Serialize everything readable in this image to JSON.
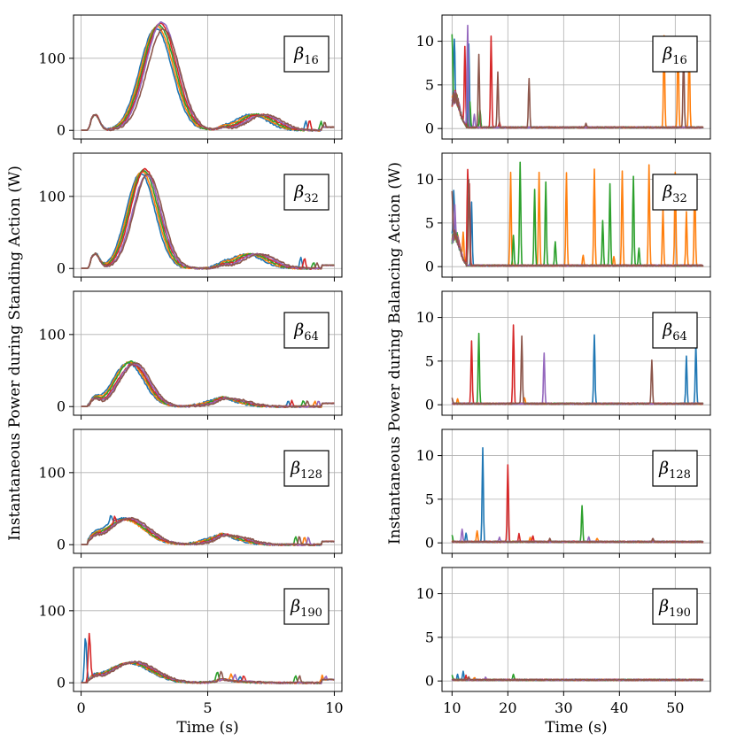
{
  "chart_data": {
    "type": "line",
    "colors": {
      "blue": "#1f77b4",
      "orange": "#ff7f0e",
      "green": "#2ca02c",
      "red": "#d62728",
      "purple": "#9467bd",
      "brown": "#8c564b"
    },
    "left": {
      "ylabel": "Instantaneous Power during Standing Action (W)",
      "xlabel": "Time (s)",
      "xlim": [
        -0.3,
        10.3
      ],
      "ylim": [
        -12,
        160
      ],
      "xticks": [
        0,
        5,
        10
      ],
      "xtick_labels": [
        "0",
        "5",
        "10"
      ],
      "yticks": [
        0,
        100
      ],
      "ytick_labels": [
        "0",
        "100"
      ]
    },
    "right": {
      "ylabel": "Instantaneous Power during Balancing Action (W)",
      "xlabel": "Time (s)",
      "xlim": [
        8.2,
        56.3
      ],
      "ylim": [
        -1.2,
        13.0
      ],
      "xticks": [
        10,
        20,
        30,
        40,
        50
      ],
      "xtick_labels": [
        "10",
        "20",
        "30",
        "40",
        "50"
      ],
      "yticks": [
        0,
        5,
        10
      ],
      "ytick_labels": [
        "0",
        "5",
        "10"
      ]
    },
    "panels": [
      {
        "label_main": "β",
        "label_sub": "16",
        "standing": {
          "peak_time": 3.1,
          "peak_width": 0.9,
          "peak_height": 145,
          "hump_time": 7.0,
          "hump_height": 22,
          "spikes": [
            [
              9.0,
              14
            ],
            [
              9.5,
              12
            ]
          ]
        },
        "balancing": [
          {
            "color": "blue",
            "spikes": [
              [
                10.4,
                6.5
              ],
              [
                13.0,
                9.5
              ]
            ]
          },
          {
            "color": "orange",
            "spikes": [
              [
                48.0,
                10.5
              ],
              [
                50.5,
                10.2
              ],
              [
                52.5,
                9.2
              ]
            ]
          },
          {
            "color": "green",
            "spikes": [
              [
                10.0,
                7.8
              ],
              [
                13.2,
                3.0
              ],
              [
                15.0,
                2.0
              ]
            ]
          },
          {
            "color": "red",
            "spikes": [
              [
                12.3,
                9.0
              ],
              [
                17.0,
                10.4
              ],
              [
                18.5,
                0.6
              ]
            ]
          },
          {
            "color": "purple",
            "spikes": [
              [
                12.8,
                11.7
              ],
              [
                14.0,
                1.5
              ]
            ]
          },
          {
            "color": "brown",
            "spikes": [
              [
                14.8,
                8.4
              ],
              [
                18.2,
                6.3
              ],
              [
                23.8,
                5.6
              ],
              [
                34.0,
                0.5
              ],
              [
                51.5,
                8.5
              ]
            ]
          }
        ]
      },
      {
        "label_main": "β",
        "label_sub": "32",
        "standing": {
          "peak_time": 2.5,
          "peak_width": 0.8,
          "peak_height": 133,
          "hump_time": 6.8,
          "hump_height": 20,
          "spikes": [
            [
              8.8,
              15
            ],
            [
              9.2,
              8
            ]
          ]
        },
        "balancing": [
          {
            "color": "blue",
            "spikes": [
              [
                10.3,
                5.0
              ],
              [
                13.5,
                7.2
              ]
            ]
          },
          {
            "color": "orange",
            "spikes": [
              [
                20.5,
                10.7
              ],
              [
                25.6,
                10.6
              ],
              [
                30.5,
                10.6
              ],
              [
                35.5,
                11.0
              ],
              [
                40.5,
                10.8
              ],
              [
                45.3,
                11.5
              ],
              [
                47.8,
                6.5
              ],
              [
                50.0,
                10.7
              ],
              [
                52.0,
                6.2
              ],
              [
                53.5,
                9.5
              ],
              [
                12.0,
                3.0
              ],
              [
                33.5,
                1.2
              ],
              [
                39.0,
                1.0
              ]
            ]
          },
          {
            "color": "green",
            "spikes": [
              [
                21.0,
                3.5
              ],
              [
                22.2,
                11.9
              ],
              [
                24.8,
                8.8
              ],
              [
                26.8,
                9.6
              ],
              [
                28.5,
                2.8
              ],
              [
                37.0,
                5.2
              ],
              [
                38.3,
                9.3
              ],
              [
                42.5,
                10.2
              ],
              [
                43.5,
                2.0
              ]
            ]
          },
          {
            "color": "red",
            "spikes": [
              [
                12.8,
                10.8
              ],
              [
                13.1,
                9.0
              ]
            ]
          },
          {
            "color": "purple",
            "spikes": [
              [
                10.5,
                3.0
              ]
            ]
          },
          {
            "color": "brown",
            "spikes": [
              [
                10.0,
                5.3
              ],
              [
                13.0,
                9.8
              ]
            ]
          }
        ]
      },
      {
        "label_main": "β",
        "label_sub": "64",
        "standing": {
          "peak_time": 2.0,
          "peak_width": 0.85,
          "peak_height": 60,
          "hump_time": 5.8,
          "hump_height": 10,
          "spikes": [
            [
              8.3,
              8
            ],
            [
              8.8,
              8
            ],
            [
              9.3,
              7
            ]
          ]
        },
        "balancing": [
          {
            "color": "blue",
            "spikes": [
              [
                35.5,
                7.8
              ],
              [
                52.0,
                5.5
              ],
              [
                53.7,
                6.8
              ]
            ]
          },
          {
            "color": "orange",
            "spikes": [
              [
                11.0,
                0.5
              ],
              [
                23.0,
                0.6
              ]
            ]
          },
          {
            "color": "green",
            "spikes": [
              [
                14.8,
                8.0
              ]
            ]
          },
          {
            "color": "red",
            "spikes": [
              [
                13.5,
                7.2
              ],
              [
                21.0,
                9.0
              ]
            ]
          },
          {
            "color": "purple",
            "spikes": [
              [
                26.5,
                5.8
              ]
            ]
          },
          {
            "color": "brown",
            "spikes": [
              [
                10.0,
                0.6
              ],
              [
                22.5,
                7.8
              ],
              [
                45.8,
                5.0
              ]
            ]
          }
        ]
      },
      {
        "label_main": "β",
        "label_sub": "128",
        "standing": {
          "peak_time": 1.8,
          "peak_width": 1.1,
          "peak_height": 36,
          "hump_time": 5.8,
          "hump_height": 12,
          "spikes": [
            [
              1.3,
              10
            ],
            [
              8.5,
              12
            ],
            [
              8.9,
              10
            ]
          ]
        },
        "balancing": [
          {
            "color": "blue",
            "spikes": [
              [
                15.5,
                10.7
              ],
              [
                12.5,
                1.0
              ]
            ]
          },
          {
            "color": "orange",
            "spikes": [
              [
                14.5,
                1.3
              ],
              [
                24.0,
                0.5
              ],
              [
                36.0,
                0.4
              ]
            ]
          },
          {
            "color": "green",
            "spikes": [
              [
                33.3,
                4.2
              ],
              [
                10.0,
                0.8
              ]
            ]
          },
          {
            "color": "red",
            "spikes": [
              [
                20.0,
                8.8
              ],
              [
                22.0,
                0.9
              ],
              [
                24.5,
                0.7
              ]
            ]
          },
          {
            "color": "purple",
            "spikes": [
              [
                11.8,
                1.5
              ],
              [
                18.5,
                0.5
              ],
              [
                34.5,
                0.5
              ]
            ]
          },
          {
            "color": "brown",
            "spikes": [
              [
                27.5,
                0.4
              ],
              [
                46.0,
                0.4
              ]
            ]
          }
        ]
      },
      {
        "label_main": "β",
        "label_sub": "190",
        "standing": {
          "peak_time": 2.0,
          "peak_width": 1.2,
          "peak_height": 28,
          "hump_time": 6.0,
          "hump_height": 2,
          "spikes": [
            [
              0.3,
              65
            ],
            [
              5.4,
              12
            ],
            [
              6.0,
              9
            ],
            [
              6.4,
              8
            ],
            [
              8.5,
              10
            ],
            [
              9.6,
              10
            ]
          ]
        },
        "balancing": [
          {
            "color": "blue",
            "spikes": [
              [
                12.0,
                1.0
              ],
              [
                11.0,
                0.6
              ]
            ]
          },
          {
            "color": "orange",
            "spikes": [
              [
                14.0,
                0.3
              ]
            ]
          },
          {
            "color": "green",
            "spikes": [
              [
                10.0,
                0.6
              ],
              [
                21.0,
                0.6
              ]
            ]
          },
          {
            "color": "red",
            "spikes": [
              [
                12.5,
                0.5
              ]
            ]
          },
          {
            "color": "purple",
            "spikes": [
              [
                16.0,
                0.3
              ]
            ]
          },
          {
            "color": "brown",
            "spikes": [
              [
                13.0,
                0.4
              ]
            ]
          }
        ]
      }
    ]
  }
}
